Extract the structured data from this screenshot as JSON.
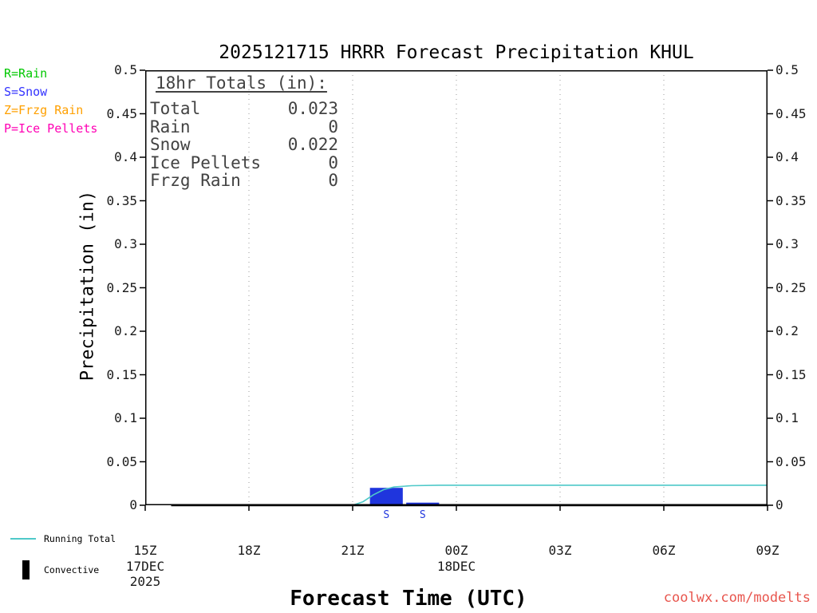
{
  "chart_data": {
    "type": "line+bar",
    "title": "2025121715 HRRR Forecast Precipitation KHUL",
    "xlabel": "Forecast Time (UTC)",
    "ylabel": "Precipitation (in)",
    "x_range": [
      15,
      33
    ],
    "y_range": [
      0,
      0.5
    ],
    "x_ticks": [
      {
        "hour": 15,
        "label": "15Z",
        "sub": [
          "17DEC",
          "2025"
        ]
      },
      {
        "hour": 18,
        "label": "18Z",
        "sub": []
      },
      {
        "hour": 21,
        "label": "21Z",
        "sub": []
      },
      {
        "hour": 24,
        "label": "00Z",
        "sub": [
          "18DEC"
        ]
      },
      {
        "hour": 27,
        "label": "03Z",
        "sub": []
      },
      {
        "hour": 30,
        "label": "06Z",
        "sub": []
      },
      {
        "hour": 33,
        "label": "09Z",
        "sub": []
      }
    ],
    "y_ticks": [
      0,
      0.05,
      0.1,
      0.15,
      0.2,
      0.25,
      0.3,
      0.35,
      0.4,
      0.45,
      0.5
    ],
    "y_tick_labels": [
      "0",
      "0.05",
      "0.1",
      "0.15",
      "0.2",
      "0.25",
      "0.3",
      "0.35",
      "0.4",
      "0.45",
      "0.5"
    ],
    "x_gridlines": [
      18,
      21,
      24,
      27,
      30
    ],
    "grid": "dotted-vertical",
    "series": [
      {
        "name": "Running Total",
        "color": "#4fc9c9",
        "width": 1.6,
        "points": [
          [
            15.75,
            0
          ],
          [
            21,
            0
          ],
          [
            21.3,
            0.004
          ],
          [
            21.6,
            0.012
          ],
          [
            21.9,
            0.018
          ],
          [
            22.2,
            0.021
          ],
          [
            22.7,
            0.0225
          ],
          [
            23.5,
            0.023
          ],
          [
            33,
            0.023
          ]
        ]
      },
      {
        "name": "Zero Baseline",
        "color": "#000000",
        "width": 2.6,
        "points": [
          [
            15.75,
            0
          ],
          [
            33,
            0
          ]
        ]
      }
    ],
    "bars": [
      {
        "start": 21.5,
        "end": 22.45,
        "value": 0.02,
        "label": "S",
        "color": "#1f35dd"
      },
      {
        "start": 22.55,
        "end": 23.5,
        "value": 0.003,
        "label": "S",
        "color": "#1f35dd"
      }
    ]
  },
  "legend": {
    "items": [
      {
        "label": "R=Rain",
        "color": "#00c800"
      },
      {
        "label": "S=Snow",
        "color": "#3232ff"
      },
      {
        "label": "Z=Frzg Rain",
        "color": "#ffa000"
      },
      {
        "label": "P=Ice Pellets",
        "color": "#ff00b4"
      }
    ]
  },
  "totals_box": {
    "heading": "18hr Totals (in):",
    "rows": [
      {
        "label": "Total",
        "value": "0.023"
      },
      {
        "label": "Rain",
        "value": "0"
      },
      {
        "label": "Snow",
        "value": "0.022"
      },
      {
        "label": "Ice Pellets",
        "value": "0"
      },
      {
        "label": "Frzg Rain",
        "value": "0"
      }
    ]
  },
  "bottom_legend": {
    "running_total_label": "Running Total",
    "running_total_color": "#4fc9c9",
    "convective_label": "Convective",
    "convective_color": "#000000"
  },
  "watermark": "coolwx.com/modelts",
  "watermark_color": "#e8564e"
}
